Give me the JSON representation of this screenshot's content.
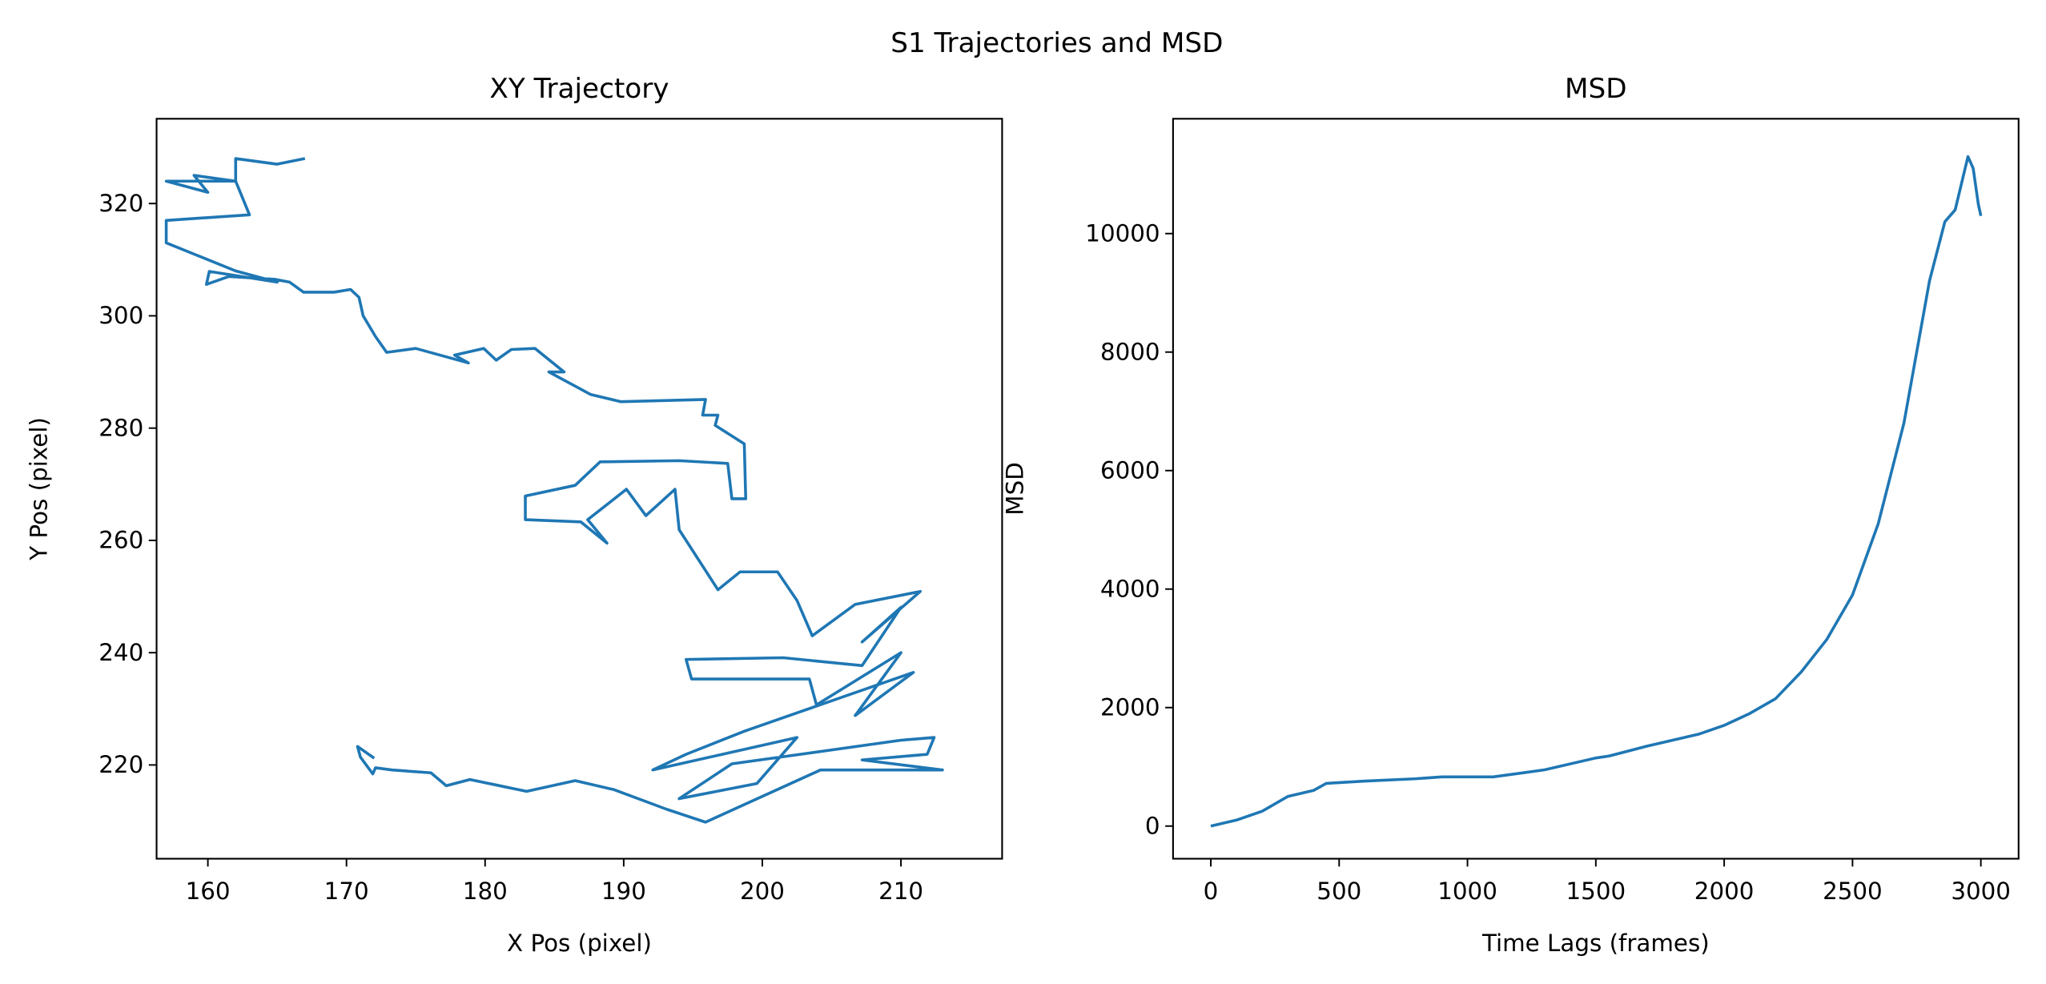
{
  "title": "S1 Trajectories and MSD",
  "chart_data": [
    {
      "type": "line",
      "title": "XY Trajectory",
      "xlabel": "X Pos (pixel)",
      "ylabel": "Y Pos (pixel)",
      "color": "#1f77b4",
      "x": [
        167,
        165,
        162,
        162,
        159,
        160,
        157,
        162,
        163,
        157,
        157,
        159,
        162,
        165,
        160.1,
        159.9,
        161.5,
        164.8,
        165.9,
        166.9,
        169.1,
        170.3,
        170.9,
        171.2,
        172.1,
        172.9,
        175.0,
        178.8,
        177.8,
        179.9,
        180.8,
        181.9,
        183.6,
        185.7,
        184.6,
        187.6,
        189.8,
        195.9,
        195.7,
        196.8,
        196.6,
        198.7,
        198.8,
        197.8,
        197.5,
        194.0,
        188.3,
        186.5,
        182.9,
        182.9,
        186.9,
        188.8,
        187.4,
        190.2,
        191.6,
        193.7,
        194.0,
        196.8,
        198.4,
        201.1,
        202.5,
        203.6,
        206.7,
        211.4,
        207.2,
        210.0,
        207.2,
        201.5,
        194.5,
        194.9,
        203.4,
        203.9,
        210.0,
        206.7,
        210.9,
        198.7,
        194.5,
        192.1,
        202.5,
        199.6,
        194.0,
        197.8,
        210.0,
        212.4,
        211.9,
        207.2,
        213.0,
        204.2,
        195.9,
        193.1,
        189.3,
        186.5,
        183.0,
        178.9,
        177.2,
        176.1,
        173.3,
        172.1,
        171.9,
        171.0,
        170.8,
        172.0
      ],
      "values": [
        328,
        327,
        328,
        324,
        325,
        322,
        324,
        324,
        318,
        317,
        313,
        311,
        308,
        306,
        307.9,
        305.6,
        307.0,
        306.5,
        306.0,
        304.2,
        304.2,
        304.7,
        303.3,
        300.0,
        296.3,
        293.5,
        294.2,
        291.6,
        293.0,
        294.2,
        292.1,
        294.0,
        294.2,
        290.0,
        290.0,
        286.0,
        284.7,
        285.1,
        282.3,
        282.3,
        280.5,
        277.2,
        267.4,
        267.4,
        273.7,
        274.2,
        274.0,
        269.8,
        267.9,
        263.7,
        263.3,
        259.5,
        263.7,
        269.1,
        264.4,
        269.1,
        261.9,
        251.2,
        254.4,
        254.4,
        249.3,
        243.0,
        248.6,
        250.9,
        241.9,
        248.1,
        237.7,
        239.1,
        238.8,
        235.3,
        235.3,
        230.7,
        240.0,
        228.8,
        236.5,
        226.0,
        221.9,
        219.1,
        224.9,
        216.7,
        214.0,
        220.2,
        224.4,
        224.9,
        221.9,
        220.9,
        219.1,
        219.1,
        209.8,
        212.1,
        215.6,
        217.2,
        215.3,
        217.4,
        216.3,
        218.6,
        219.1,
        219.5,
        218.4,
        221.4,
        223.3,
        221.2
      ],
      "xlim": [
        156.3,
        217.3
      ],
      "ylim": [
        203.3,
        335.1
      ],
      "xticks": [
        160,
        170,
        180,
        190,
        200,
        210
      ],
      "yticks": [
        220,
        240,
        260,
        280,
        300,
        320
      ]
    },
    {
      "type": "line",
      "title": "MSD",
      "xlabel": "Time Lags (frames)",
      "ylabel": "MSD",
      "color": "#1f77b4",
      "x": [
        0,
        100,
        200,
        300,
        400,
        450,
        600,
        800,
        900,
        1100,
        1300,
        1500,
        1550,
        1700,
        1900,
        2000,
        2100,
        2200,
        2300,
        2400,
        2500,
        2600,
        2700,
        2800,
        2860,
        2900,
        2950,
        2970,
        2990,
        3000
      ],
      "values": [
        0,
        100,
        250,
        500,
        600,
        720,
        760,
        800,
        830,
        830,
        950,
        1150,
        1180,
        1350,
        1550,
        1700,
        1900,
        2150,
        2600,
        3150,
        3900,
        5100,
        6800,
        9200,
        10200,
        10400,
        11300,
        11100,
        10500,
        10300
      ],
      "xlim": [
        -147,
        3147
      ],
      "ylim": [
        -551,
        11938
      ],
      "xticks": [
        0,
        500,
        1000,
        1500,
        2000,
        2500,
        3000
      ],
      "yticks": [
        0,
        2000,
        4000,
        6000,
        8000,
        10000
      ]
    }
  ]
}
